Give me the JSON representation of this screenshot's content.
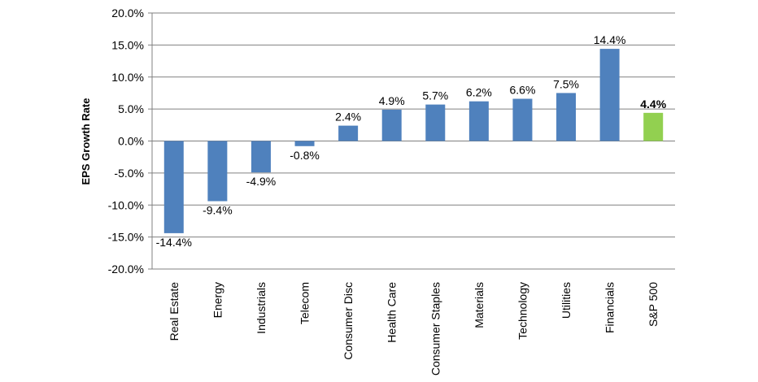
{
  "chart_data": {
    "type": "bar",
    "ylabel": "EPS Growth Rate",
    "xlabel": "",
    "ylim": [
      -20,
      20
    ],
    "y_ticks": [
      "20.0%",
      "15.0%",
      "10.0%",
      "5.0%",
      "0.0%",
      "-5.0%",
      "-10.0%",
      "-15.0%",
      "-20.0%"
    ],
    "grid": true,
    "categories": [
      "Real Estate",
      "Energy",
      "Industrials",
      "Telecom",
      "Consumer Disc",
      "Health Care",
      "Consumer Staples",
      "Materials",
      "Technology",
      "Utilities",
      "Financials",
      "S&P 500"
    ],
    "values": [
      -14.4,
      -9.4,
      -4.9,
      -0.8,
      2.4,
      4.9,
      5.7,
      6.2,
      6.6,
      7.5,
      14.4,
      4.4
    ],
    "data_labels": [
      "-14.4%",
      "-9.4%",
      "-4.9%",
      "-0.8%",
      "2.4%",
      "4.9%",
      "5.7%",
      "6.2%",
      "6.6%",
      "7.5%",
      "14.4%",
      "4.4%"
    ],
    "bar_color": "#4F81BD",
    "highlight_color": "#92D050",
    "highlight_category": "S&P 500",
    "grid_color": "#808080"
  }
}
